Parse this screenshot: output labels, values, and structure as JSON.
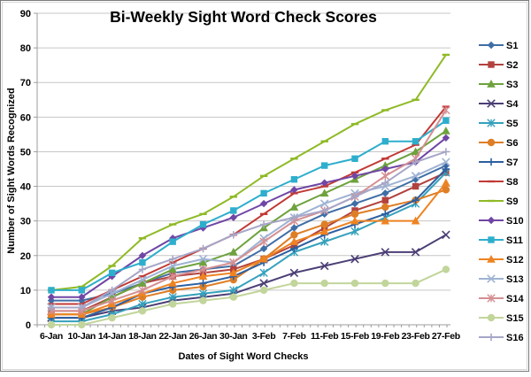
{
  "window": {
    "kind": "excel-line-chart"
  },
  "chart_data": {
    "type": "line",
    "title": "Bi-Weekly Sight Word Check Scores",
    "xlabel": "Dates of Sight Word Checks",
    "ylabel": "Number of Sight Words Recognized",
    "ylim": [
      0,
      90
    ],
    "ytick_step": 10,
    "grid": true,
    "legend_position": "right",
    "categories": [
      "6-Jan",
      "10-Jan",
      "14-Jan",
      "18-Jan",
      "22-Jan",
      "26-Jan",
      "30-Jan",
      "3-Feb",
      "7-Feb",
      "11-Feb",
      "15-Feb",
      "19-Feb",
      "23-Feb",
      "27-Feb"
    ],
    "series": [
      {
        "name": "S1",
        "color": "#3F6EA6",
        "marker": "diamond",
        "values": [
          7,
          7,
          9,
          12,
          15,
          16,
          17,
          22,
          28,
          32,
          35,
          38,
          42,
          46
        ]
      },
      {
        "name": "S2",
        "color": "#B2423E",
        "marker": "square",
        "values": [
          4,
          4,
          8,
          12,
          14,
          15,
          16,
          19,
          23,
          28,
          33,
          36,
          40,
          44
        ]
      },
      {
        "name": "S3",
        "color": "#6EA23D",
        "marker": "triangle",
        "values": [
          3,
          3,
          8,
          12,
          16,
          18,
          21,
          28,
          34,
          38,
          42,
          46,
          50,
          56
        ]
      },
      {
        "name": "S4",
        "color": "#4B3E75",
        "marker": "x",
        "values": [
          2,
          2,
          4,
          5,
          7,
          8,
          9,
          12,
          15,
          17,
          19,
          21,
          21,
          26
        ]
      },
      {
        "name": "S5",
        "color": "#35A1BC",
        "marker": "asterisk",
        "values": [
          1,
          1,
          3,
          6,
          8,
          9,
          10,
          15,
          21,
          24,
          27,
          31,
          35,
          44
        ]
      },
      {
        "name": "S6",
        "color": "#DE7E26",
        "marker": "circle",
        "values": [
          3,
          3,
          5,
          8,
          10,
          11,
          13,
          19,
          26,
          29,
          32,
          34,
          36,
          39
        ]
      },
      {
        "name": "S7",
        "color": "#2C5FA0",
        "marker": "plus",
        "values": [
          2,
          2,
          5,
          9,
          11,
          12,
          14,
          18,
          22,
          26,
          29,
          32,
          36,
          45
        ]
      },
      {
        "name": "S8",
        "color": "#C23A36",
        "marker": "dash",
        "values": [
          6,
          6,
          10,
          14,
          18,
          22,
          26,
          32,
          38,
          40,
          44,
          48,
          52,
          63
        ]
      },
      {
        "name": "S9",
        "color": "#8FBA26",
        "marker": "dash",
        "values": [
          10,
          11,
          17,
          25,
          29,
          32,
          37,
          43,
          48,
          53,
          58,
          62,
          65,
          78
        ]
      },
      {
        "name": "S10",
        "color": "#7046A5",
        "marker": "diamond",
        "values": [
          8,
          8,
          14,
          20,
          25,
          28,
          31,
          35,
          39,
          41,
          43,
          45,
          47,
          54
        ]
      },
      {
        "name": "S11",
        "color": "#2EAECD",
        "marker": "square",
        "values": [
          10,
          10,
          15,
          18,
          24,
          29,
          33,
          38,
          42,
          46,
          48,
          53,
          53,
          59
        ]
      },
      {
        "name": "S12",
        "color": "#EE8322",
        "marker": "triangle",
        "values": [
          3,
          3,
          6,
          9,
          12,
          14,
          15,
          19,
          24,
          27,
          30,
          30,
          30,
          41
        ]
      },
      {
        "name": "S13",
        "color": "#9FB3D4",
        "marker": "x",
        "values": [
          5,
          5,
          9,
          13,
          17,
          19,
          18,
          25,
          31,
          35,
          38,
          40,
          43,
          47
        ]
      },
      {
        "name": "S14",
        "color": "#D58F92",
        "marker": "asterisk",
        "values": [
          4,
          4,
          7,
          10,
          14,
          16,
          18,
          24,
          30,
          33,
          37,
          43,
          48,
          62
        ]
      },
      {
        "name": "S15",
        "color": "#C2D59B",
        "marker": "circle",
        "values": [
          0,
          0,
          2,
          4,
          6,
          7,
          8,
          10,
          12,
          12,
          12,
          12,
          12,
          16
        ]
      },
      {
        "name": "S16",
        "color": "#A6A6C8",
        "marker": "plus",
        "values": [
          5,
          5,
          10,
          16,
          19,
          22,
          26,
          29,
          31,
          33,
          37,
          41,
          47,
          50
        ]
      }
    ]
  },
  "style": {
    "grid_color": "#c6c6c6",
    "axis_color": "#9c9c9c",
    "text_color": "#000000"
  }
}
